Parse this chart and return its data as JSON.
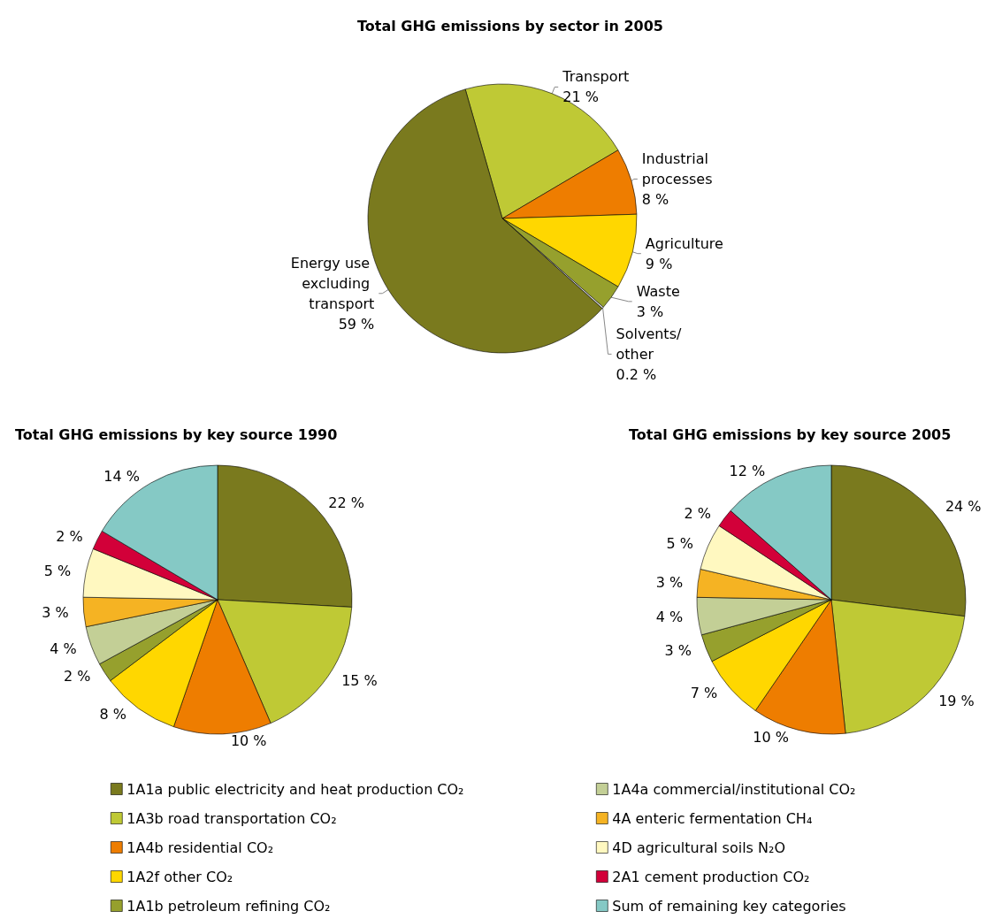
{
  "chart_data": [
    {
      "type": "pie",
      "title": "Total GHG emissions by sector in 2005",
      "categories": [
        "Transport",
        "Industrial processes",
        "Agriculture",
        "Waste",
        "Solvents/ other",
        "Energy use excluding transport"
      ],
      "values": [
        21,
        8,
        9,
        3,
        0.2,
        59
      ],
      "value_labels": [
        "21 %",
        "8 %",
        "9 %",
        "3 %",
        "0.2 %",
        "59 %"
      ],
      "colors": [
        "#bfc935",
        "#ee7d00",
        "#ffd700",
        "#96a02d",
        "#e6e6e6",
        "#7a7a1e"
      ]
    },
    {
      "type": "pie",
      "title": "Total GHG emissions by key source 1990",
      "legend": "bottom",
      "categories": [
        "1A1a public electricity and heat production CO₂",
        "1A3b road transportation CO₂",
        "1A4b residential CO₂",
        "1A2f other CO₂",
        "1A1b petroleum refining CO₂",
        "1A4a commercial/institutional CO₂",
        "4A enteric fermentation CH₄",
        "4D agricultural soils N₂O",
        "2A1 cement production CO₂",
        "Sum of remaining key categories"
      ],
      "values": [
        22,
        15,
        10,
        8,
        2,
        4,
        3,
        5,
        2,
        14
      ],
      "value_labels": [
        "22 %",
        "15 %",
        "10 %",
        "8 %",
        "2 %",
        "4 %",
        "3 %",
        "5 %",
        "2 %",
        "14 %"
      ],
      "colors": [
        "#7a7a1e",
        "#bfc935",
        "#ee7d00",
        "#ffd700",
        "#96a02d",
        "#c3cf96",
        "#f5b323",
        "#fff8c0",
        "#d20039",
        "#85c9c5"
      ]
    },
    {
      "type": "pie",
      "title": "Total GHG emissions by key source 2005",
      "categories": [
        null,
        null,
        null,
        null,
        null,
        null,
        null,
        null,
        null,
        null
      ],
      "values": [
        24,
        19,
        10,
        7,
        3,
        4,
        3,
        5,
        2,
        12
      ],
      "value_labels": [
        "24 %",
        "19 %",
        "10 %",
        "7 %",
        "3 %",
        "4 %",
        "3 %",
        "5 %",
        "2 %",
        "12 %"
      ],
      "colors": [
        "#7a7a1e",
        "#bfc935",
        "#ee7d00",
        "#ffd700",
        "#96a02d",
        "#c3cf96",
        "#f5b323",
        "#fff8c0",
        "#d20039",
        "#85c9c5"
      ]
    }
  ]
}
